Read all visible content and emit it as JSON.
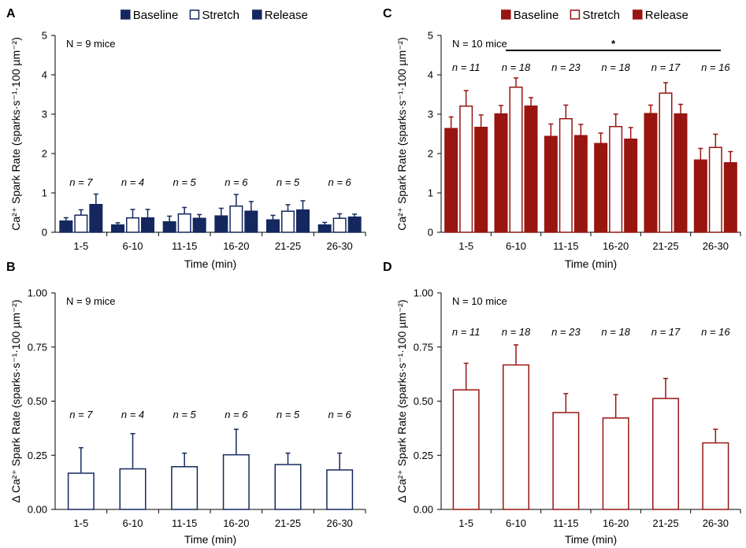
{
  "figure": {
    "categories": [
      "1-5",
      "6-10",
      "11-15",
      "16-20",
      "21-25",
      "26-30"
    ]
  },
  "colors": {
    "blue": "#14285f",
    "red": "#981510"
  },
  "chart_data": [
    {
      "panel": "A",
      "type": "bar",
      "color": "#14285f",
      "legend": [
        "Baseline",
        "Stretch",
        "Release"
      ],
      "mice_label": "N = 9 mice",
      "n_labels": [
        "n = 7",
        "n = 4",
        "n = 5",
        "n = 6",
        "n = 5",
        "n = 6"
      ],
      "xlabel": "Time (min)",
      "ylabel": "Ca²⁺ Spark Rate (sparks·s⁻¹·100 µm⁻²)",
      "ylim": [
        0,
        5
      ],
      "yticks": [
        "0",
        "1",
        "2",
        "3",
        "4",
        "5"
      ],
      "series": [
        {
          "name": "Baseline",
          "fill": "solid",
          "values": [
            0.3,
            0.2,
            0.28,
            0.43,
            0.33,
            0.2
          ],
          "errors": [
            0.07,
            0.04,
            0.13,
            0.18,
            0.1,
            0.05
          ]
        },
        {
          "name": "Stretch",
          "fill": "open",
          "values": [
            0.45,
            0.38,
            0.48,
            0.68,
            0.55,
            0.37
          ],
          "errors": [
            0.12,
            0.2,
            0.15,
            0.28,
            0.15,
            0.1
          ]
        },
        {
          "name": "Release",
          "fill": "solid",
          "values": [
            0.72,
            0.38,
            0.37,
            0.55,
            0.58,
            0.4
          ],
          "errors": [
            0.25,
            0.2,
            0.08,
            0.23,
            0.22,
            0.06
          ]
        }
      ]
    },
    {
      "panel": "B",
      "type": "bar",
      "color": "#14285f",
      "mice_label": "N = 9 mice",
      "n_labels": [
        "n = 7",
        "n = 4",
        "n = 5",
        "n = 6",
        "n = 5",
        "n = 6"
      ],
      "xlabel": "Time (min)",
      "ylabel": "Δ Ca²⁺ Spark Rate (sparks·s⁻¹·100 µm⁻²)",
      "ylim": [
        0,
        1
      ],
      "yticks": [
        "0.00",
        "0.25",
        "0.50",
        "0.75",
        "1.00"
      ],
      "series": [
        {
          "name": "Δ",
          "fill": "open",
          "values": [
            0.17,
            0.19,
            0.2,
            0.255,
            0.21,
            0.185
          ],
          "errors": [
            0.115,
            0.16,
            0.06,
            0.115,
            0.05,
            0.075
          ]
        }
      ]
    },
    {
      "panel": "C",
      "type": "bar",
      "color": "#981510",
      "legend": [
        "Baseline",
        "Stretch",
        "Release"
      ],
      "mice_label": "N = 10 mice",
      "significance": "*",
      "n_labels": [
        "n = 11",
        "n = 18",
        "n = 23",
        "n = 18",
        "n = 17",
        "n = 16"
      ],
      "xlabel": "Time (min)",
      "ylabel": "Ca²⁺ Spark Rate (sparks·s⁻¹·100 µm⁻²)",
      "ylim": [
        0,
        5
      ],
      "yticks": [
        "0",
        "1",
        "2",
        "3",
        "4",
        "5"
      ],
      "series": [
        {
          "name": "Baseline",
          "fill": "solid",
          "values": [
            2.65,
            3.02,
            2.45,
            2.27,
            3.03,
            1.85
          ],
          "errors": [
            0.28,
            0.2,
            0.3,
            0.25,
            0.2,
            0.28
          ]
        },
        {
          "name": "Stretch",
          "fill": "open",
          "values": [
            3.22,
            3.7,
            2.9,
            2.7,
            3.55,
            2.17
          ],
          "errors": [
            0.38,
            0.22,
            0.33,
            0.3,
            0.25,
            0.32
          ]
        },
        {
          "name": "Release",
          "fill": "solid",
          "values": [
            2.68,
            3.22,
            2.47,
            2.38,
            3.02,
            1.78
          ],
          "errors": [
            0.3,
            0.2,
            0.27,
            0.28,
            0.23,
            0.27
          ]
        }
      ]
    },
    {
      "panel": "D",
      "type": "bar",
      "color": "#981510",
      "mice_label": "N = 10 mice",
      "n_labels": [
        "n = 11",
        "n = 18",
        "n = 23",
        "n = 18",
        "n = 17",
        "n = 16"
      ],
      "xlabel": "Time (min)",
      "ylabel": "Δ Ca²⁺ Spark Rate (sparks·s⁻¹·100 µm⁻²)",
      "ylim": [
        0,
        1
      ],
      "yticks": [
        "0.00",
        "0.25",
        "0.50",
        "0.75",
        "1.00"
      ],
      "series": [
        {
          "name": "Δ",
          "fill": "open",
          "values": [
            0.555,
            0.67,
            0.45,
            0.425,
            0.515,
            0.31
          ],
          "errors": [
            0.12,
            0.09,
            0.085,
            0.105,
            0.09,
            0.06
          ]
        }
      ]
    }
  ]
}
